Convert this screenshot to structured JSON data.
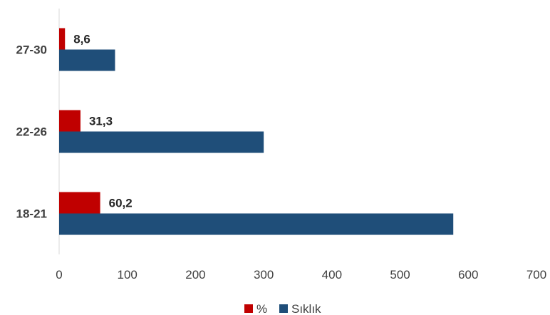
{
  "chart_data": {
    "type": "bar",
    "orientation": "horizontal",
    "categories": [
      "18-21",
      "22-26",
      "27-30"
    ],
    "series": [
      {
        "name": "%",
        "values": [
          60.2,
          31.3,
          8.6
        ],
        "labels": [
          "60,2",
          "31,3",
          "8,6"
        ],
        "color": "#c00000"
      },
      {
        "name": "Sıklık",
        "values": [
          578,
          300,
          82
        ],
        "color": "#1f4e79"
      }
    ],
    "xlim": [
      0,
      700
    ],
    "xticks": [
      "0",
      "100",
      "200",
      "300",
      "400",
      "500",
      "600",
      "700"
    ],
    "grid": false,
    "legend_position": "bottom"
  }
}
